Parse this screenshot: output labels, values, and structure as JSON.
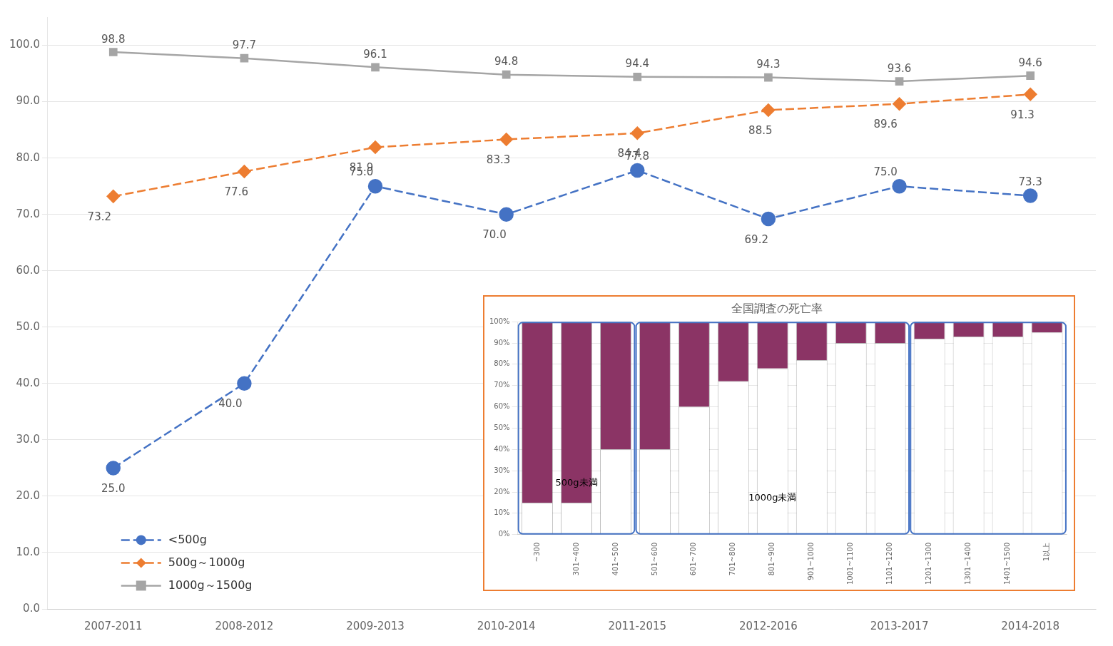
{
  "chart_data": [
    {
      "type": "line",
      "categories": [
        "2007-2011",
        "2008-2012",
        "2009-2013",
        "2010-2014",
        "2011-2015",
        "2012-2016",
        "2013-2017",
        "2014-2018"
      ],
      "series": [
        {
          "name": "1000g～1500g",
          "color": "#A5A5A5",
          "marker": "square",
          "line_style": "solid",
          "values": [
            98.8,
            97.7,
            96.1,
            94.8,
            94.4,
            94.3,
            93.6,
            94.6
          ],
          "value_labels": [
            "98.8",
            "97.7",
            "96.1",
            "94.8",
            "94.4",
            "94.3",
            "93.6",
            "94.6"
          ]
        },
        {
          "name": "500g～1000g",
          "color": "#ED7D31",
          "marker": "diamond",
          "line_style": "dashed",
          "values": [
            73.2,
            77.6,
            81.9,
            83.3,
            84.4,
            88.5,
            89.6,
            91.3
          ],
          "value_labels": [
            "73.2",
            "77.6",
            "81.9",
            "83.3",
            "84.4",
            "88.5",
            "89.6",
            "91.3"
          ]
        },
        {
          "name": "<500g",
          "color": "#4472C4",
          "marker": "circle",
          "line_style": "dashed",
          "values": [
            25.0,
            40.0,
            75.0,
            70.0,
            77.8,
            69.2,
            75.0,
            73.3
          ],
          "value_labels": [
            "25.0",
            "40.0",
            "75.0",
            "70.0",
            "77.8",
            "69.2",
            "75.0",
            "73.3"
          ]
        }
      ],
      "ylim": [
        0,
        105
      ],
      "yticks": [
        {
          "value": 0,
          "label": "0.0"
        },
        {
          "value": 10,
          "label": "10.0"
        },
        {
          "value": 20,
          "label": "20.0"
        },
        {
          "value": 30,
          "label": "30.0"
        },
        {
          "value": 40,
          "label": "40.0"
        },
        {
          "value": 50,
          "label": "50.0"
        },
        {
          "value": 60,
          "label": "60.0"
        },
        {
          "value": 70,
          "label": "70.0"
        },
        {
          "value": 80,
          "label": "80.0"
        },
        {
          "value": 90,
          "label": "90.0"
        },
        {
          "value": 100,
          "label": "100.0"
        }
      ],
      "grid": true,
      "legend": "lower left",
      "data_labels": true
    },
    {
      "type": "bar",
      "title": "全国調査の死亡率",
      "categories": [
        "~300",
        "301~400",
        "401~500",
        "501~600",
        "601~700",
        "701~800",
        "801~900",
        "901~1000",
        "1001~1100",
        "1101~1200",
        "1201~1300",
        "1301~1400",
        "1401~1500",
        "1以上"
      ],
      "series": [
        {
          "color": "#FFFFFF",
          "values": [
            0.15,
            0.15,
            0.4,
            0.4,
            0.6,
            0.72,
            0.78,
            0.82,
            0.9,
            0.9,
            0.92,
            0.93,
            0.93,
            0.95
          ]
        },
        {
          "color": "#8B3465",
          "values": [
            0.85,
            0.85,
            0.6,
            0.6,
            0.4,
            0.28,
            0.22,
            0.18,
            0.1,
            0.1,
            0.08,
            0.07,
            0.07,
            0.05
          ]
        }
      ],
      "stacked": true,
      "ylim": [
        0,
        1
      ],
      "yticks": [
        {
          "value": 0,
          "label": "0%"
        },
        {
          "value": 0.1,
          "label": "10%"
        },
        {
          "value": 0.2,
          "label": "20%"
        },
        {
          "value": 0.3,
          "label": "30%"
        },
        {
          "value": 0.4,
          "label": "40%"
        },
        {
          "value": 0.5,
          "label": "50%"
        },
        {
          "value": 0.6,
          "label": "60%"
        },
        {
          "value": 0.7,
          "label": "70%"
        },
        {
          "value": 0.8,
          "label": "80%"
        },
        {
          "value": 0.9,
          "label": "90%"
        },
        {
          "value": 1,
          "label": "100%"
        }
      ],
      "grid": true,
      "annotations": [
        {
          "text": "500g未満",
          "x": "301~400",
          "y": 0.22
        },
        {
          "text": "1000g未満",
          "x": "801~900",
          "y": 0.15
        }
      ]
    }
  ]
}
